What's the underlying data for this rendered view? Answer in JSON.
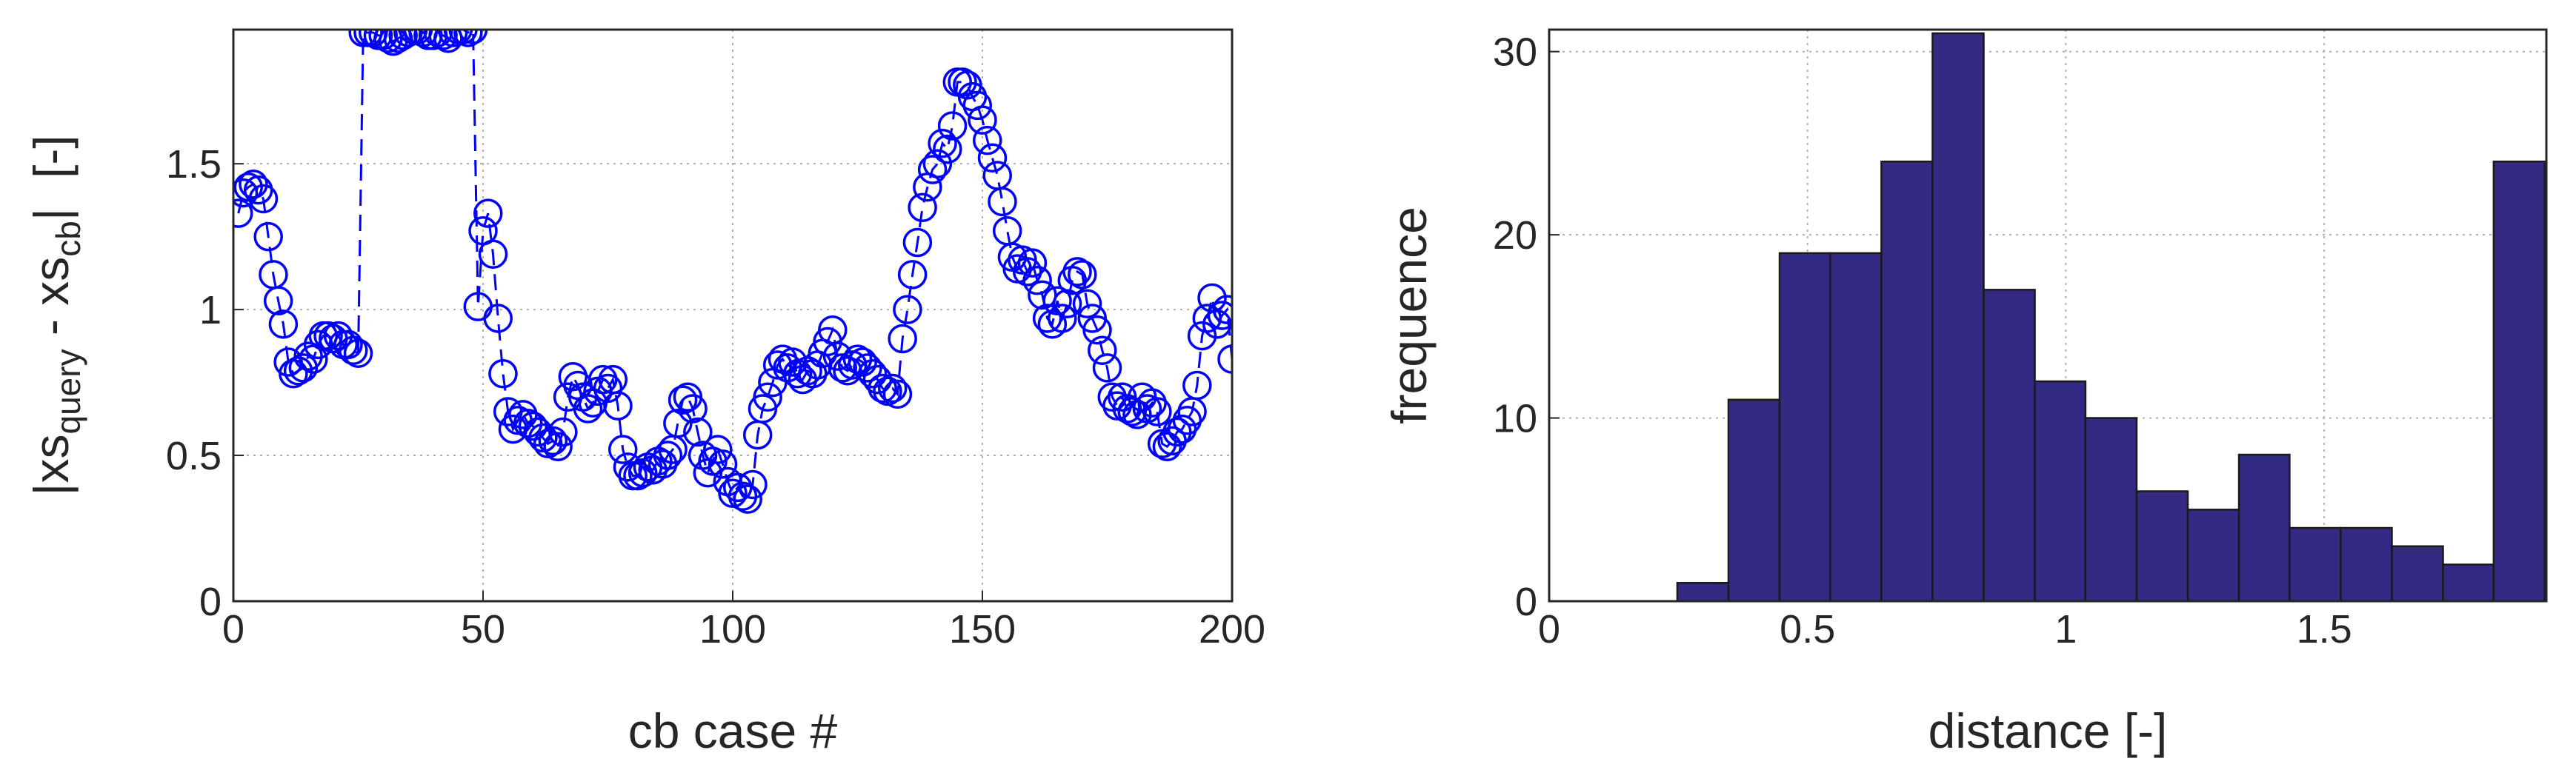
{
  "chart_data": [
    {
      "type": "line",
      "marker": "circle",
      "linestyle": "dashed",
      "grid": true,
      "xlabel": "cb case #",
      "ylabel": [
        "|xs",
        "query",
        " - xs",
        "cb",
        "|",
        "[-]"
      ],
      "xlim": [
        0,
        200
      ],
      "ylim": [
        0,
        1.96
      ],
      "xticks": [
        0,
        50,
        100,
        150,
        200
      ],
      "yticks": [
        0,
        0.5,
        1,
        1.5
      ],
      "x": [
        1,
        2,
        3,
        4,
        5,
        6,
        7,
        8,
        9,
        10,
        11,
        12,
        13,
        14,
        15,
        16,
        17,
        18,
        19,
        20,
        21,
        22,
        23,
        24,
        25,
        26,
        27,
        28,
        29,
        30,
        31,
        32,
        33,
        34,
        35,
        36,
        37,
        38,
        39,
        40,
        41,
        42,
        43,
        44,
        45,
        46,
        47,
        48,
        49,
        50,
        51,
        52,
        53,
        54,
        55,
        56,
        57,
        58,
        59,
        60,
        61,
        62,
        63,
        64,
        65,
        66,
        67,
        68,
        69,
        70,
        71,
        72,
        73,
        74,
        75,
        76,
        77,
        78,
        79,
        80,
        81,
        82,
        83,
        84,
        85,
        86,
        87,
        88,
        89,
        90,
        91,
        92,
        93,
        94,
        95,
        96,
        97,
        98,
        99,
        100,
        101,
        102,
        103,
        104,
        105,
        106,
        107,
        108,
        109,
        110,
        111,
        112,
        113,
        114,
        115,
        116,
        117,
        118,
        119,
        120,
        121,
        122,
        123,
        124,
        125,
        126,
        127,
        128,
        129,
        130,
        131,
        132,
        133,
        134,
        135,
        136,
        137,
        138,
        139,
        140,
        141,
        142,
        143,
        144,
        145,
        146,
        147,
        148,
        149,
        150,
        151,
        152,
        153,
        154,
        155,
        156,
        157,
        158,
        159,
        160,
        161,
        162,
        163,
        164,
        165,
        166,
        167,
        168,
        169,
        170,
        171,
        172,
        173,
        174,
        175,
        176,
        177,
        178,
        179,
        180,
        181,
        182,
        183,
        184,
        185,
        186,
        187,
        188,
        189,
        190,
        191,
        192,
        193,
        194,
        195,
        196,
        197,
        198,
        199,
        200
      ],
      "series": [
        {
          "color": "#0000ff",
          "values": [
            1.33,
            1.4,
            1.42,
            1.43,
            1.41,
            1.38,
            1.25,
            1.12,
            1.03,
            0.95,
            0.82,
            0.78,
            0.79,
            0.8,
            0.84,
            0.83,
            0.88,
            0.91,
            0.91,
            0.9,
            0.91,
            0.88,
            0.88,
            0.86,
            0.85,
            1.95,
            1.95,
            1.95,
            1.94,
            1.94,
            1.93,
            1.92,
            1.93,
            1.94,
            1.95,
            1.96,
            1.96,
            1.95,
            1.94,
            1.94,
            1.95,
            1.94,
            1.93,
            1.95,
            1.96,
            1.96,
            1.95,
            1.96,
            1.01,
            1.27,
            1.33,
            1.19,
            0.97,
            0.78,
            0.65,
            0.59,
            0.62,
            0.64,
            0.61,
            0.6,
            0.58,
            0.56,
            0.54,
            0.55,
            0.53,
            0.58,
            0.7,
            0.77,
            0.74,
            0.7,
            0.66,
            0.68,
            0.72,
            0.76,
            0.73,
            0.76,
            0.67,
            0.52,
            0.46,
            0.43,
            0.43,
            0.44,
            0.46,
            0.45,
            0.48,
            0.47,
            0.5,
            0.52,
            0.61,
            0.69,
            0.7,
            0.66,
            0.58,
            0.5,
            0.44,
            0.48,
            0.52,
            0.47,
            0.41,
            0.37,
            0.39,
            0.36,
            0.35,
            0.4,
            0.57,
            0.66,
            0.7,
            0.75,
            0.81,
            0.83,
            0.8,
            0.82,
            0.78,
            0.76,
            0.79,
            0.78,
            0.81,
            0.85,
            0.89,
            0.93,
            0.84,
            0.8,
            0.79,
            0.81,
            0.83,
            0.82,
            0.8,
            0.78,
            0.76,
            0.73,
            0.72,
            0.73,
            0.71,
            0.9,
            1.0,
            1.12,
            1.23,
            1.35,
            1.42,
            1.48,
            1.5,
            1.57,
            1.55,
            1.63,
            1.78,
            1.78,
            1.77,
            1.73,
            1.7,
            1.65,
            1.58,
            1.52,
            1.46,
            1.37,
            1.27,
            1.18,
            1.14,
            1.17,
            1.13,
            1.16,
            1.1,
            1.05,
            0.97,
            0.95,
            1.03,
            0.97,
            1.02,
            1.1,
            1.13,
            1.12,
            1.02,
            0.97,
            0.93,
            0.86,
            0.8,
            0.7,
            0.67,
            0.7,
            0.66,
            0.65,
            0.64,
            0.7,
            0.66,
            0.68,
            0.65,
            0.54,
            0.53,
            0.55,
            0.58,
            0.59,
            0.62,
            0.65,
            0.74,
            0.91,
            0.97,
            1.04,
            0.95,
            0.98,
            1.0,
            0.83
          ]
        }
      ]
    },
    {
      "type": "histogram",
      "grid": true,
      "xlabel": "distance [-]",
      "ylabel": "frequence",
      "xlim": [
        0,
        1.93
      ],
      "ylim": [
        0,
        31.2
      ],
      "xticks": [
        0,
        0.5,
        1,
        1.5
      ],
      "yticks": [
        0,
        10,
        20,
        30
      ],
      "color": "#332a84",
      "bins": [
        0.248,
        0.347,
        0.446,
        0.544,
        0.643,
        0.742,
        0.841,
        0.94,
        1.038,
        1.137,
        1.236,
        1.335,
        1.433,
        1.532,
        1.631,
        1.73,
        1.828,
        1.927
      ],
      "counts": [
        1,
        11,
        19,
        19,
        24,
        31,
        17,
        12,
        10,
        6,
        5,
        8,
        4,
        4,
        3,
        2,
        24
      ]
    }
  ]
}
